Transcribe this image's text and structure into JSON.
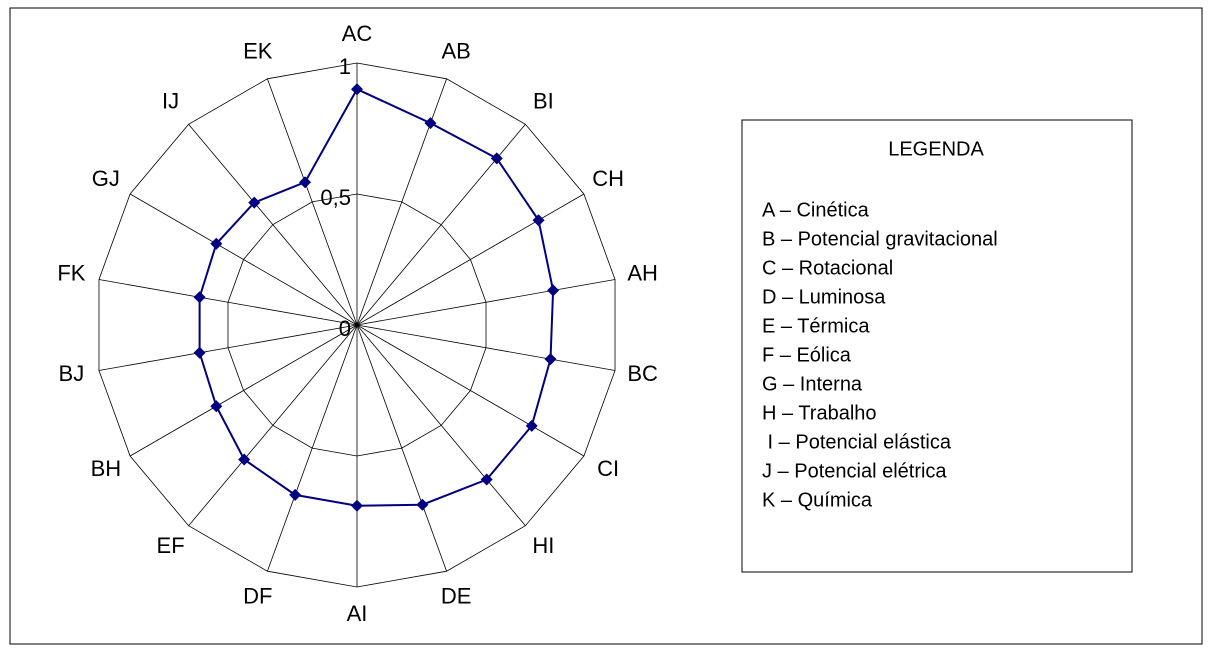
{
  "chart_data": {
    "type": "radar",
    "categories": [
      "AC",
      "AB",
      "BI",
      "CH",
      "AH",
      "BC",
      "CI",
      "HI",
      "DE",
      "AI",
      "DF",
      "EF",
      "BH",
      "BJ",
      "FK",
      "GJ",
      "IJ",
      "EK"
    ],
    "series": [
      {
        "color": "#000080",
        "values": [
          0.9,
          0.82,
          0.83,
          0.8,
          0.76,
          0.75,
          0.77,
          0.77,
          0.73,
          0.69,
          0.69,
          0.67,
          0.62,
          0.61,
          0.61,
          0.62,
          0.61,
          0.58
        ]
      }
    ],
    "ylim": [
      0,
      1
    ],
    "yticks": [
      0,
      {
        "value": 0.5,
        "label": "0,5"
      },
      1
    ],
    "grid": true,
    "legend": {
      "title": "LEGENDA",
      "items": [
        "A – Cinética",
        "B – Potencial gravitacional",
        "C – Rotacional",
        "D – Luminosa",
        "E – Térmica",
        "F – Eólica",
        "G – Interna",
        "H – Trabalho",
        " I – Potencial elástica",
        "J – Potencial elétrica",
        "K – Química"
      ]
    }
  }
}
